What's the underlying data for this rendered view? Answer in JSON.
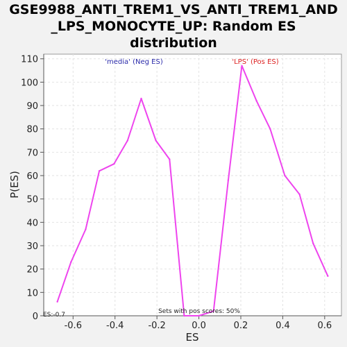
{
  "chart_data": {
    "type": "line",
    "title_lines": [
      "GSE9988_ANTI_TREM1_VS_ANTI_TREM1_AND",
      "_LPS_MONOCYTE_UP: Random ES",
      "distribution"
    ],
    "xlabel": "ES",
    "ylabel": "P(ES)",
    "xlim": [
      -0.74,
      0.68
    ],
    "ylim": [
      0,
      112
    ],
    "x_ticks": [
      -0.6,
      -0.4,
      -0.2,
      0.0,
      0.2,
      0.4,
      0.6
    ],
    "x_tick_labels": [
      "-0.6",
      "-0.4",
      "-0.2",
      "0.0",
      "0.2",
      "0.4",
      "0.6"
    ],
    "y_ticks": [
      0,
      10,
      20,
      30,
      40,
      50,
      60,
      70,
      80,
      90,
      100,
      110
    ],
    "y_tick_labels": [
      "0",
      "10",
      "20",
      "30",
      "40",
      "50",
      "60",
      "70",
      "80",
      "90",
      "100",
      "110"
    ],
    "grid": true,
    "series": [
      {
        "color": "#ee44ee",
        "x": [
          -0.675,
          -0.61,
          -0.54,
          -0.475,
          -0.405,
          -0.34,
          -0.275,
          -0.205,
          -0.14,
          -0.07,
          0.0,
          0.07,
          0.14,
          0.205,
          0.275,
          0.34,
          0.41,
          0.48,
          0.545,
          0.615
        ],
        "y": [
          6,
          23,
          37,
          62,
          65,
          75,
          93,
          75,
          67,
          0,
          0,
          2,
          58,
          107,
          92,
          80,
          60,
          52,
          31,
          17
        ]
      }
    ],
    "annotations": [
      {
        "text": "'media' (Neg ES)",
        "color": "#2a2aaa"
      },
      {
        "text": "'LPS' (Pos ES)",
        "color": "#dd2222"
      },
      {
        "text": "Sets with pos scores: 50%",
        "color": "#222222"
      },
      {
        "text": "ES:-0.7",
        "color": "#222222"
      }
    ]
  }
}
